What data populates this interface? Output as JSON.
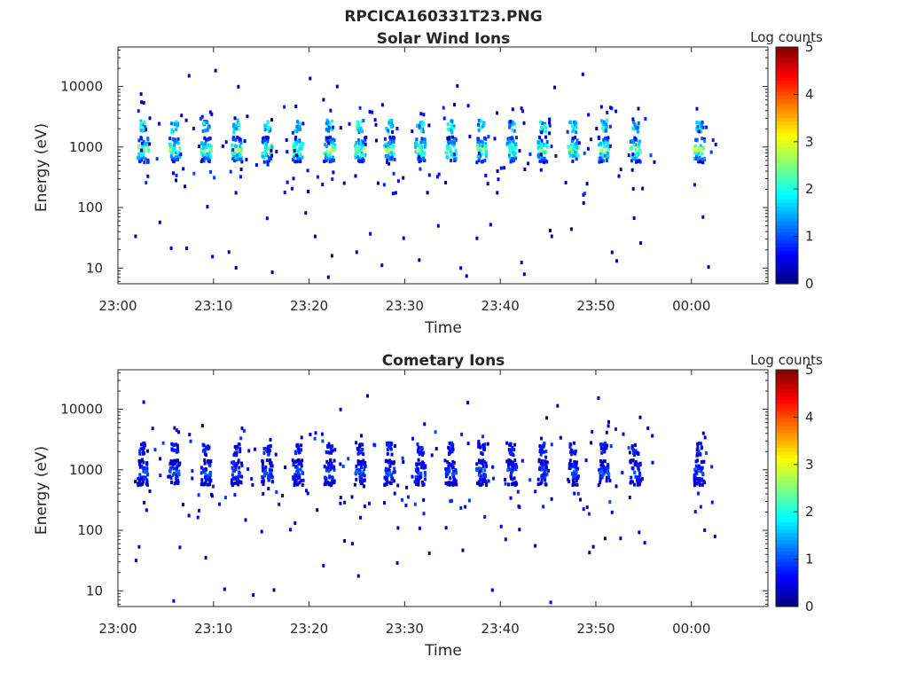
{
  "figure": {
    "title": "RPCICA160331T23.PNG"
  },
  "colors": {
    "text": "#262626",
    "background": "#ffffff"
  },
  "colormap": "jet",
  "chart_data": [
    {
      "type": "heatmap",
      "title": "Solar Wind Ions",
      "xlabel": "Time",
      "ylabel": "Energy (eV)",
      "xlim_minutes": [
        0,
        68
      ],
      "ylim": [
        5.5,
        45000
      ],
      "yscale": "log",
      "x_ticks": [
        {
          "t": 0,
          "label": "23:00"
        },
        {
          "t": 10,
          "label": "23:10"
        },
        {
          "t": 20,
          "label": "23:20"
        },
        {
          "t": 30,
          "label": "23:30"
        },
        {
          "t": 40,
          "label": "23:40"
        },
        {
          "t": 50,
          "label": "23:50"
        },
        {
          "t": 60,
          "label": "00:00"
        }
      ],
      "y_ticks": [
        {
          "v": 10,
          "label": "10"
        },
        {
          "v": 100,
          "label": "100"
        },
        {
          "v": 1000,
          "label": "1000"
        },
        {
          "v": 10000,
          "label": "10000"
        }
      ],
      "colorbar": {
        "label": "Log counts",
        "min": 0,
        "max": 5,
        "ticks": [
          "0",
          "1",
          "2",
          "3",
          "4",
          "5"
        ]
      },
      "grid": false,
      "sweeps_start_minute": [
        2.5,
        5.8,
        9.1,
        12.3,
        15.5,
        18.7,
        22.0,
        25.2,
        28.3,
        31.5,
        34.7,
        37.9,
        41.1,
        44.3,
        47.5,
        50.7,
        54.0,
        60.7
      ],
      "main_band_energy_ev": 900,
      "secondary_band_energy_ev": 2200,
      "peak_log_counts": 3.2
    },
    {
      "type": "heatmap",
      "title": "Cometary Ions",
      "xlabel": "Time",
      "ylabel": "Energy (eV)",
      "xlim_minutes": [
        0,
        68
      ],
      "ylim": [
        5.5,
        45000
      ],
      "yscale": "log",
      "x_ticks": [
        {
          "t": 0,
          "label": "23:00"
        },
        {
          "t": 10,
          "label": "23:10"
        },
        {
          "t": 20,
          "label": "23:20"
        },
        {
          "t": 30,
          "label": "23:30"
        },
        {
          "t": 40,
          "label": "23:40"
        },
        {
          "t": 50,
          "label": "23:50"
        },
        {
          "t": 60,
          "label": "00:00"
        }
      ],
      "y_ticks": [
        {
          "v": 10,
          "label": "10"
        },
        {
          "v": 100,
          "label": "100"
        },
        {
          "v": 1000,
          "label": "1000"
        },
        {
          "v": 10000,
          "label": "10000"
        }
      ],
      "colorbar": {
        "label": "Log counts",
        "min": 0,
        "max": 5,
        "ticks": [
          "0",
          "1",
          "2",
          "3",
          "4",
          "5"
        ]
      },
      "grid": false,
      "sweeps_start_minute": [
        2.5,
        5.8,
        9.1,
        12.3,
        15.5,
        18.7,
        22.0,
        25.2,
        28.3,
        31.5,
        34.7,
        37.9,
        41.1,
        44.3,
        47.5,
        50.7,
        54.0,
        60.7
      ],
      "main_band_energy_ev": 900,
      "secondary_band_energy_ev": 2200,
      "peak_log_counts": 1.3
    }
  ]
}
